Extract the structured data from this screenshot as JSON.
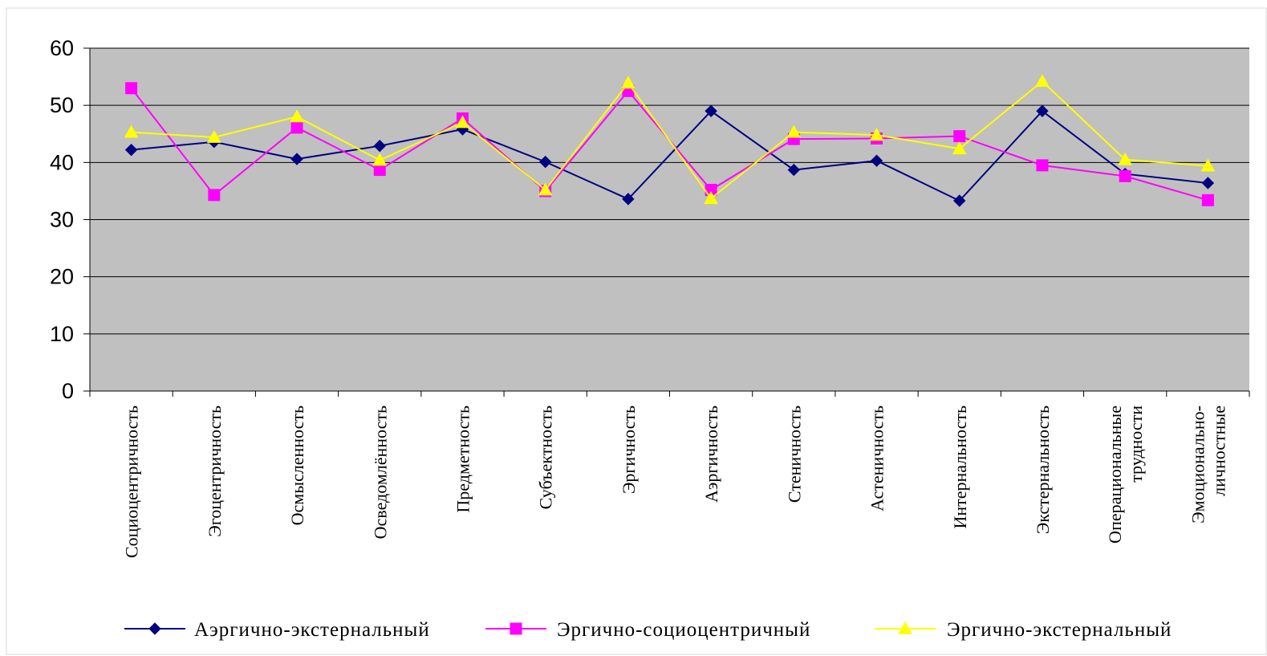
{
  "chart_data": {
    "type": "line",
    "title": "",
    "xlabel": "",
    "ylabel": "",
    "ylim": [
      0,
      60
    ],
    "yticks": [
      0,
      10,
      20,
      30,
      40,
      50,
      60
    ],
    "grid": "horizontal",
    "legend_position": "bottom",
    "plot_background": "#c0c0c0",
    "categories": [
      [
        "Социоцентричность"
      ],
      [
        "Эгоцентричность"
      ],
      [
        "Осмысленность"
      ],
      [
        "Осведомлённость"
      ],
      [
        "Предметность"
      ],
      [
        "Субъектность"
      ],
      [
        "Эргичность"
      ],
      [
        "Аэргичность"
      ],
      [
        "Стеничность"
      ],
      [
        "Астеничность"
      ],
      [
        "Интернальность"
      ],
      [
        "Экстернальность"
      ],
      [
        "Операциональные",
        "трудности"
      ],
      [
        "Эмоционально-",
        "личностные"
      ]
    ],
    "series": [
      {
        "name": "Аэргично-экстернальный",
        "color": "#000080",
        "marker": "diamond",
        "values": [
          42.2,
          43.6,
          40.6,
          42.9,
          45.8,
          40.1,
          33.6,
          49.0,
          38.7,
          40.3,
          33.3,
          49.0,
          38.0,
          36.4
        ]
      },
      {
        "name": "Эргично-социоцентричный",
        "color": "#ff00ff",
        "marker": "square",
        "values": [
          53.0,
          34.3,
          46.1,
          38.7,
          47.7,
          35.0,
          52.5,
          35.2,
          44.1,
          44.2,
          44.6,
          39.5,
          37.6,
          33.4
        ]
      },
      {
        "name": "Эргично-экстернальный",
        "color": "#ffff00",
        "marker": "triangle",
        "values": [
          45.3,
          44.4,
          48.0,
          40.4,
          47.0,
          35.2,
          53.9,
          33.7,
          45.3,
          44.8,
          42.4,
          54.2,
          40.5,
          39.4
        ]
      }
    ]
  }
}
